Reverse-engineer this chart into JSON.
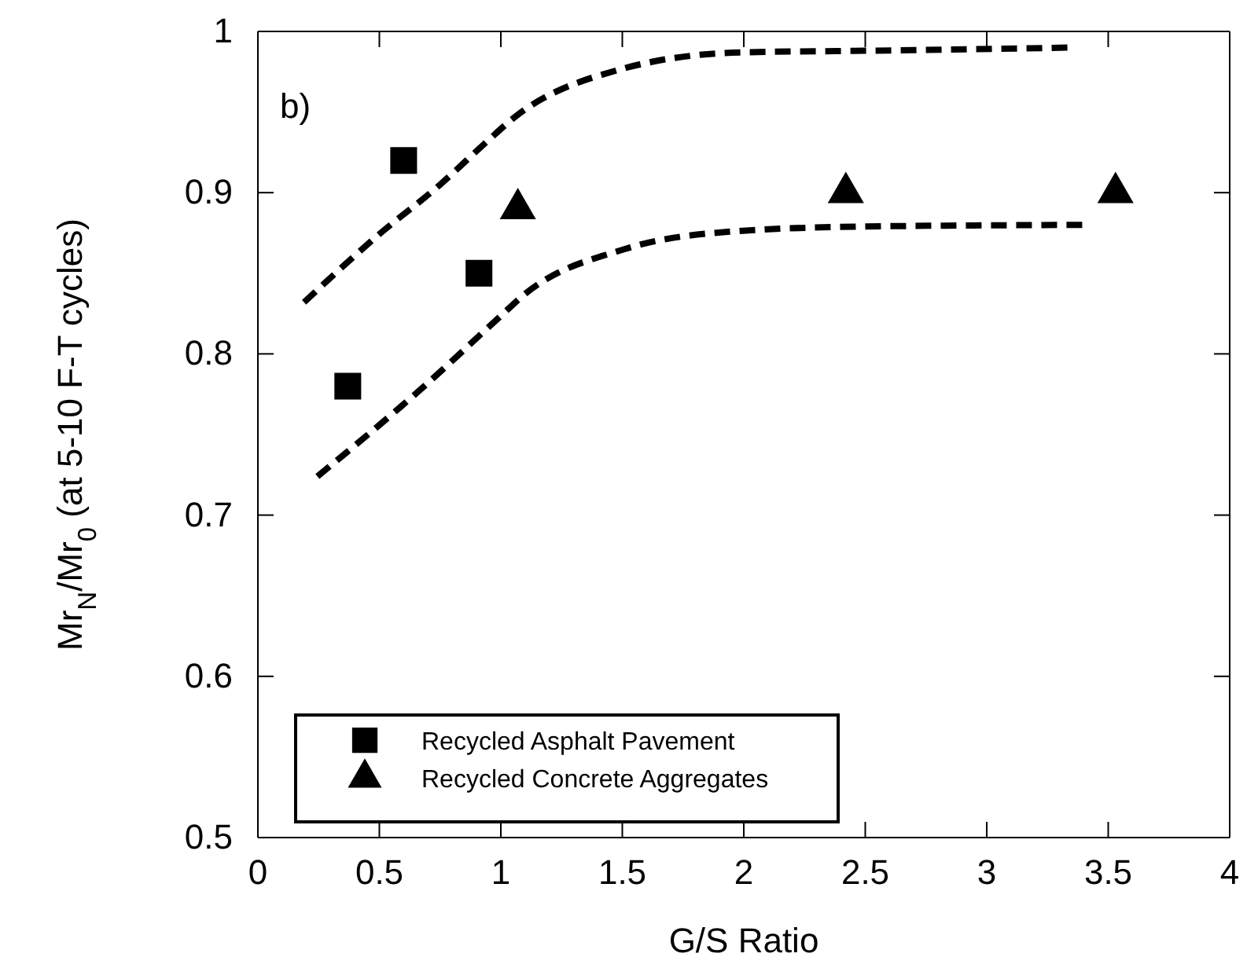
{
  "chart_data": {
    "type": "scatter",
    "xlabel": "G/S Ratio",
    "ylabel": "Mr$_{N}$/Mr$_{0}$ (at 5-10 F-T cycles)",
    "annotations": [
      "b)"
    ],
    "xlim": [
      0,
      4
    ],
    "xticks": [
      0,
      0.5,
      1,
      1.5,
      2,
      2.5,
      3,
      3.5,
      4
    ],
    "ylim": [
      0.5,
      1
    ],
    "yticks": [
      0.5,
      0.6,
      0.7,
      0.8,
      0.9,
      1
    ],
    "grid": false,
    "legend": "bottom left",
    "series": [
      {
        "name": "Recycled Asphalt Pavement",
        "marker": "square",
        "color": "#000000",
        "x": [
          0.37,
          0.6,
          0.91
        ],
        "values": [
          0.78,
          0.92,
          0.85
        ]
      },
      {
        "name": "Recycled Concrete Aggregates",
        "marker": "triangle",
        "color": "#000000",
        "x": [
          1.07,
          2.42,
          3.53
        ],
        "values": [
          0.89,
          0.9,
          0.9
        ]
      },
      {
        "type": "line",
        "marker": "none",
        "line_style": "dashed",
        "color": "#000000",
        "x": [
          0.19,
          0.49,
          0.75,
          0.945,
          1.05,
          1.48,
          1.99,
          2.5,
          3.35
        ],
        "values": [
          0.832,
          0.873,
          0.905,
          0.932,
          0.946,
          0.976,
          0.987,
          0.988,
          0.99
        ]
      },
      {
        "type": "line",
        "marker": "none",
        "line_style": "dashed",
        "color": "#000000",
        "x": [
          0.245,
          0.67,
          1.01,
          1.09,
          1.51,
          1.96,
          2.5,
          3.4
        ],
        "values": [
          0.724,
          0.778,
          0.825,
          0.836,
          0.865,
          0.876,
          0.879,
          0.88
        ]
      }
    ]
  }
}
